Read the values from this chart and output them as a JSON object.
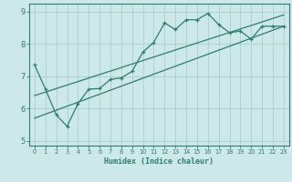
{
  "xlabel": "Humidex (Indice chaleur)",
  "ylabel": "",
  "xlim": [
    -0.5,
    23.5
  ],
  "ylim": [
    4.85,
    9.25
  ],
  "bg_color": "#cce8e8",
  "line_color": "#2e7d6e",
  "grid_color": "#aacfcf",
  "x_ticks": [
    0,
    1,
    2,
    3,
    4,
    5,
    6,
    7,
    8,
    9,
    10,
    11,
    12,
    13,
    14,
    15,
    16,
    17,
    18,
    19,
    20,
    21,
    22,
    23
  ],
  "y_ticks": [
    5,
    6,
    7,
    8,
    9
  ],
  "line1_x": [
    0,
    1,
    2,
    3,
    4,
    5,
    6,
    7,
    8,
    9,
    10,
    11,
    12,
    13,
    14,
    15,
    16,
    17,
    18,
    19,
    20,
    21,
    22,
    23
  ],
  "line1_y": [
    7.35,
    6.6,
    5.8,
    5.45,
    6.15,
    6.6,
    6.62,
    6.9,
    6.95,
    7.15,
    7.75,
    8.05,
    8.65,
    8.45,
    8.75,
    8.75,
    8.95,
    8.6,
    8.35,
    8.4,
    8.15,
    8.55,
    8.55,
    8.55
  ],
  "line2_x": [
    0,
    23
  ],
  "line2_y": [
    5.7,
    8.55
  ],
  "line3_x": [
    0,
    23
  ],
  "line3_y": [
    6.4,
    8.9
  ]
}
